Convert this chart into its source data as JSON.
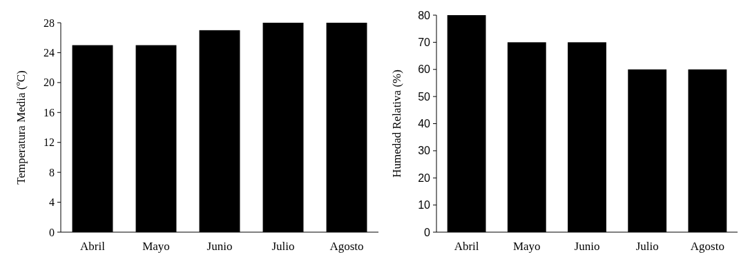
{
  "chart_data": [
    {
      "type": "bar",
      "ylabel": "Temperatura Media (ºC)",
      "categories": [
        "Abril",
        "Mayo",
        "Junio",
        "Julio",
        "Agosto"
      ],
      "values": [
        25,
        25,
        27,
        28,
        28
      ],
      "color": "#000000",
      "ylim": [
        0,
        28
      ],
      "yticks": [
        0,
        4,
        8,
        12,
        16,
        20,
        24,
        28
      ],
      "grid": false
    },
    {
      "type": "bar",
      "ylabel": "Humedad Relativa (%)",
      "categories": [
        "Abril",
        "Mayo",
        "Junio",
        "Julio",
        "Agosto"
      ],
      "values": [
        80,
        70,
        70,
        60,
        60
      ],
      "color": "#000000",
      "ylim": [
        0,
        80
      ],
      "yticks": [
        0,
        10,
        20,
        30,
        40,
        50,
        60,
        70,
        80
      ],
      "grid": false
    }
  ]
}
